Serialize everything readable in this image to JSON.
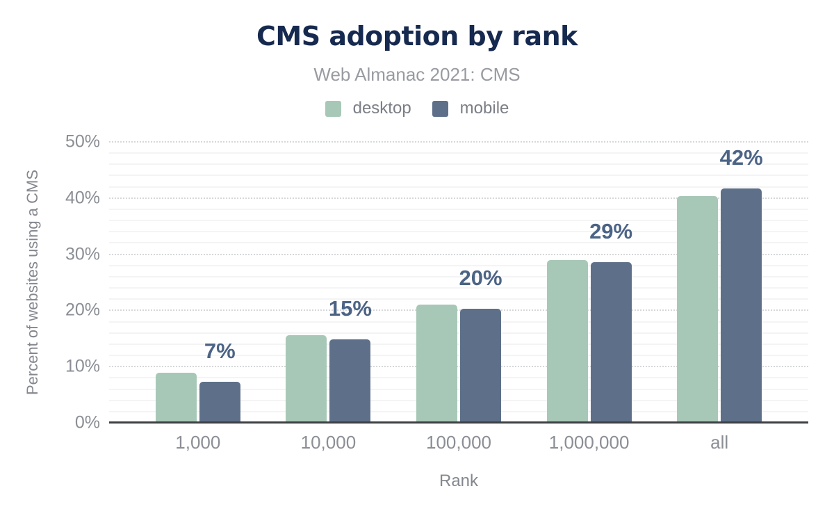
{
  "chart_data": {
    "type": "bar",
    "title": "CMS adoption by rank",
    "subtitle": "Web Almanac 2021: CMS",
    "xlabel": "Rank",
    "ylabel": "Percent of websites using a CMS",
    "categories": [
      "1,000",
      "10,000",
      "100,000",
      "1,000,000",
      "all"
    ],
    "series": [
      {
        "name": "desktop",
        "color": "#a8c8b7",
        "values": [
          8.9,
          15.6,
          21.0,
          29.0,
          40.3
        ]
      },
      {
        "name": "mobile",
        "color": "#5e7089",
        "values": [
          7.3,
          14.8,
          20.3,
          28.6,
          41.7
        ]
      }
    ],
    "bar_labels": {
      "series": "mobile",
      "texts": [
        "7%",
        "15%",
        "20%",
        "29%",
        "42%"
      ]
    },
    "ylim": [
      0,
      50
    ],
    "yticks": [
      0,
      10,
      20,
      30,
      40,
      50
    ],
    "ytick_labels": [
      "0%",
      "10%",
      "20%",
      "30%",
      "40%",
      "50%"
    ],
    "grid": {
      "minor_step_percent": 2,
      "major_step_percent": 10,
      "minor_on": true,
      "major_on": true
    },
    "legend_position": "top"
  },
  "colors": {
    "title": "#16294f",
    "subtitle": "#989ba1",
    "legend_text": "#7b7e85",
    "tick_text": "#8b8e95",
    "axis_title_text": "#84878e",
    "bar_label_text": "#4b6385",
    "axis_line": "#3c4043",
    "desktop_bar": "#a8c8b7",
    "mobile_bar": "#5e7089"
  }
}
